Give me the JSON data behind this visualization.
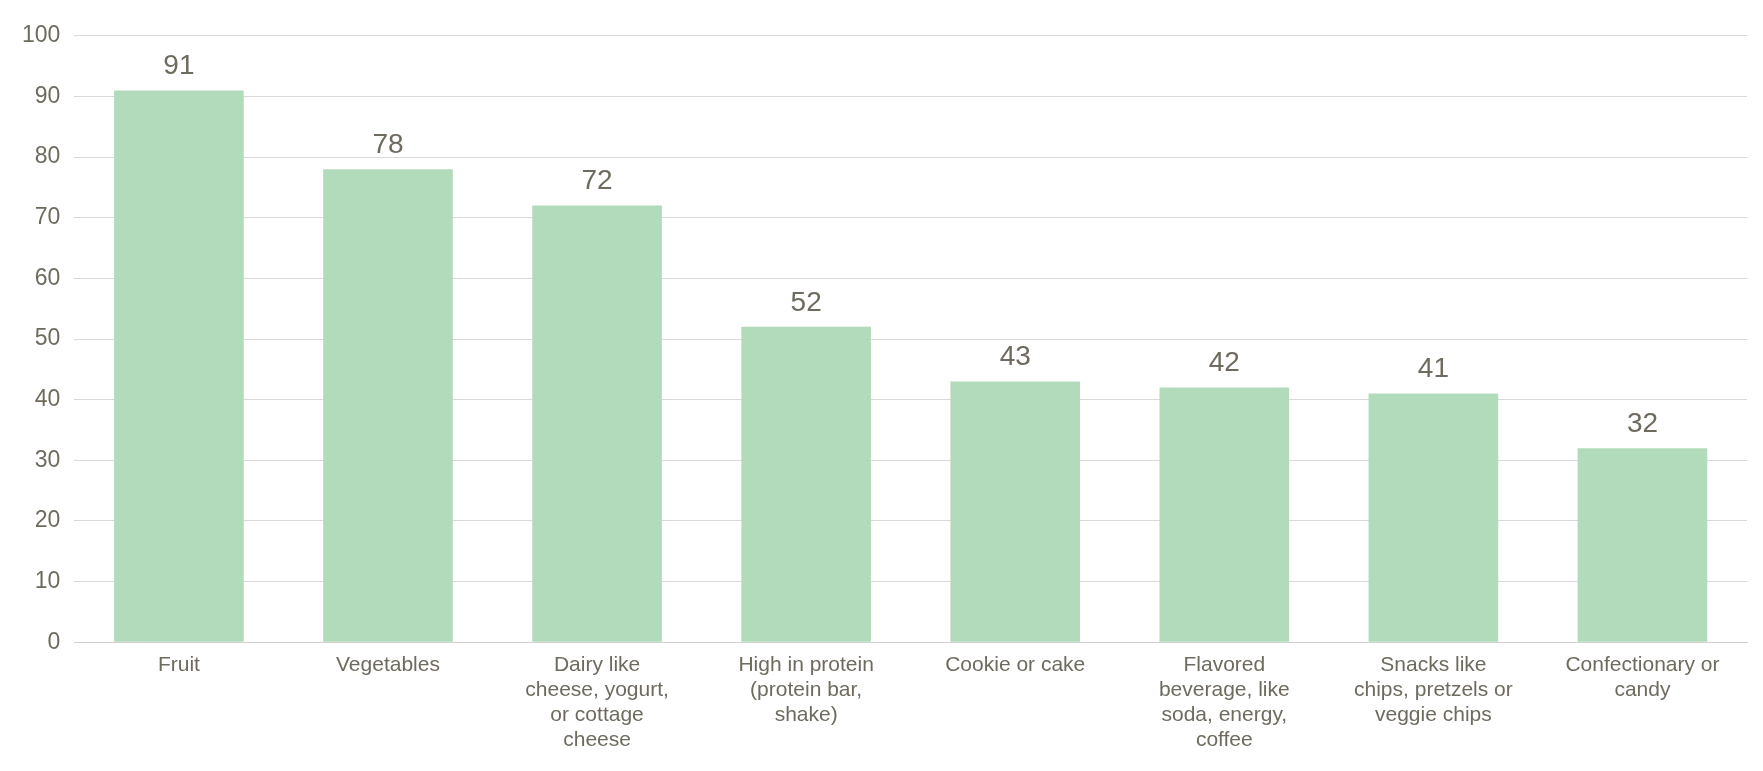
{
  "chart_data": {
    "type": "bar",
    "categories": [
      "Fruit",
      "Vegetables",
      "Dairy like cheese, yogurt, or cottage cheese",
      "High in protein (protein bar, shake)",
      "Cookie or cake",
      "Flavored beverage, like soda, energy, coffee",
      "Snacks like chips, pretzels or veggie chips",
      "Confectionary or candy"
    ],
    "values": [
      91,
      78,
      72,
      52,
      43,
      42,
      41,
      32
    ],
    "color": "#b2dbbb",
    "ylim": [
      0,
      100
    ],
    "yticks": [
      0,
      10,
      20,
      30,
      40,
      50,
      60,
      70,
      80,
      90,
      100
    ],
    "grid": "y",
    "legend": false,
    "data_labels": true
  }
}
